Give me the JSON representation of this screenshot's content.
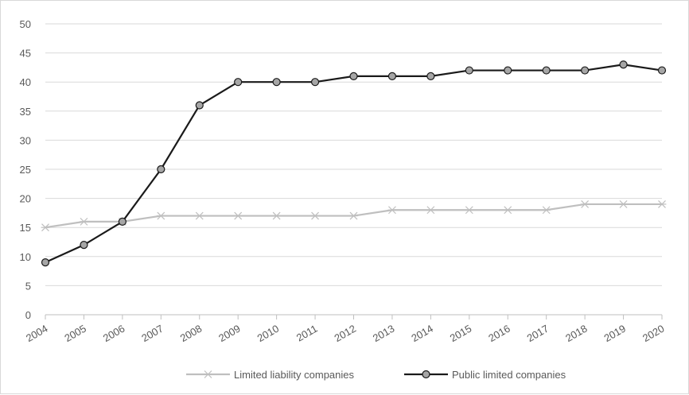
{
  "chart_data": {
    "type": "line",
    "title": "",
    "xlabel": "",
    "ylabel": "",
    "ylim": [
      0,
      50
    ],
    "ytick_step": 5,
    "grid": true,
    "legend_position": "bottom",
    "categories": [
      "2004",
      "2005",
      "2006",
      "2007",
      "2008",
      "2009",
      "2010",
      "2011",
      "2012",
      "2013",
      "2014",
      "2015",
      "2016",
      "2017",
      "2018",
      "2019",
      "2020"
    ],
    "series": [
      {
        "name": "Limited liability companies",
        "color": "#bfbfbf",
        "marker": "asterisk",
        "values": [
          15,
          16,
          16,
          17,
          17,
          17,
          17,
          17,
          17,
          18,
          18,
          18,
          18,
          18,
          19,
          19,
          19
        ]
      },
      {
        "name": "Public limited companies",
        "color": "#1a1a1a",
        "marker": "circle",
        "marker_fill": "#a6a6a6",
        "values": [
          9,
          12,
          16,
          25,
          36,
          40,
          40,
          40,
          41,
          41,
          41,
          42,
          42,
          42,
          42,
          43,
          42
        ]
      }
    ]
  }
}
